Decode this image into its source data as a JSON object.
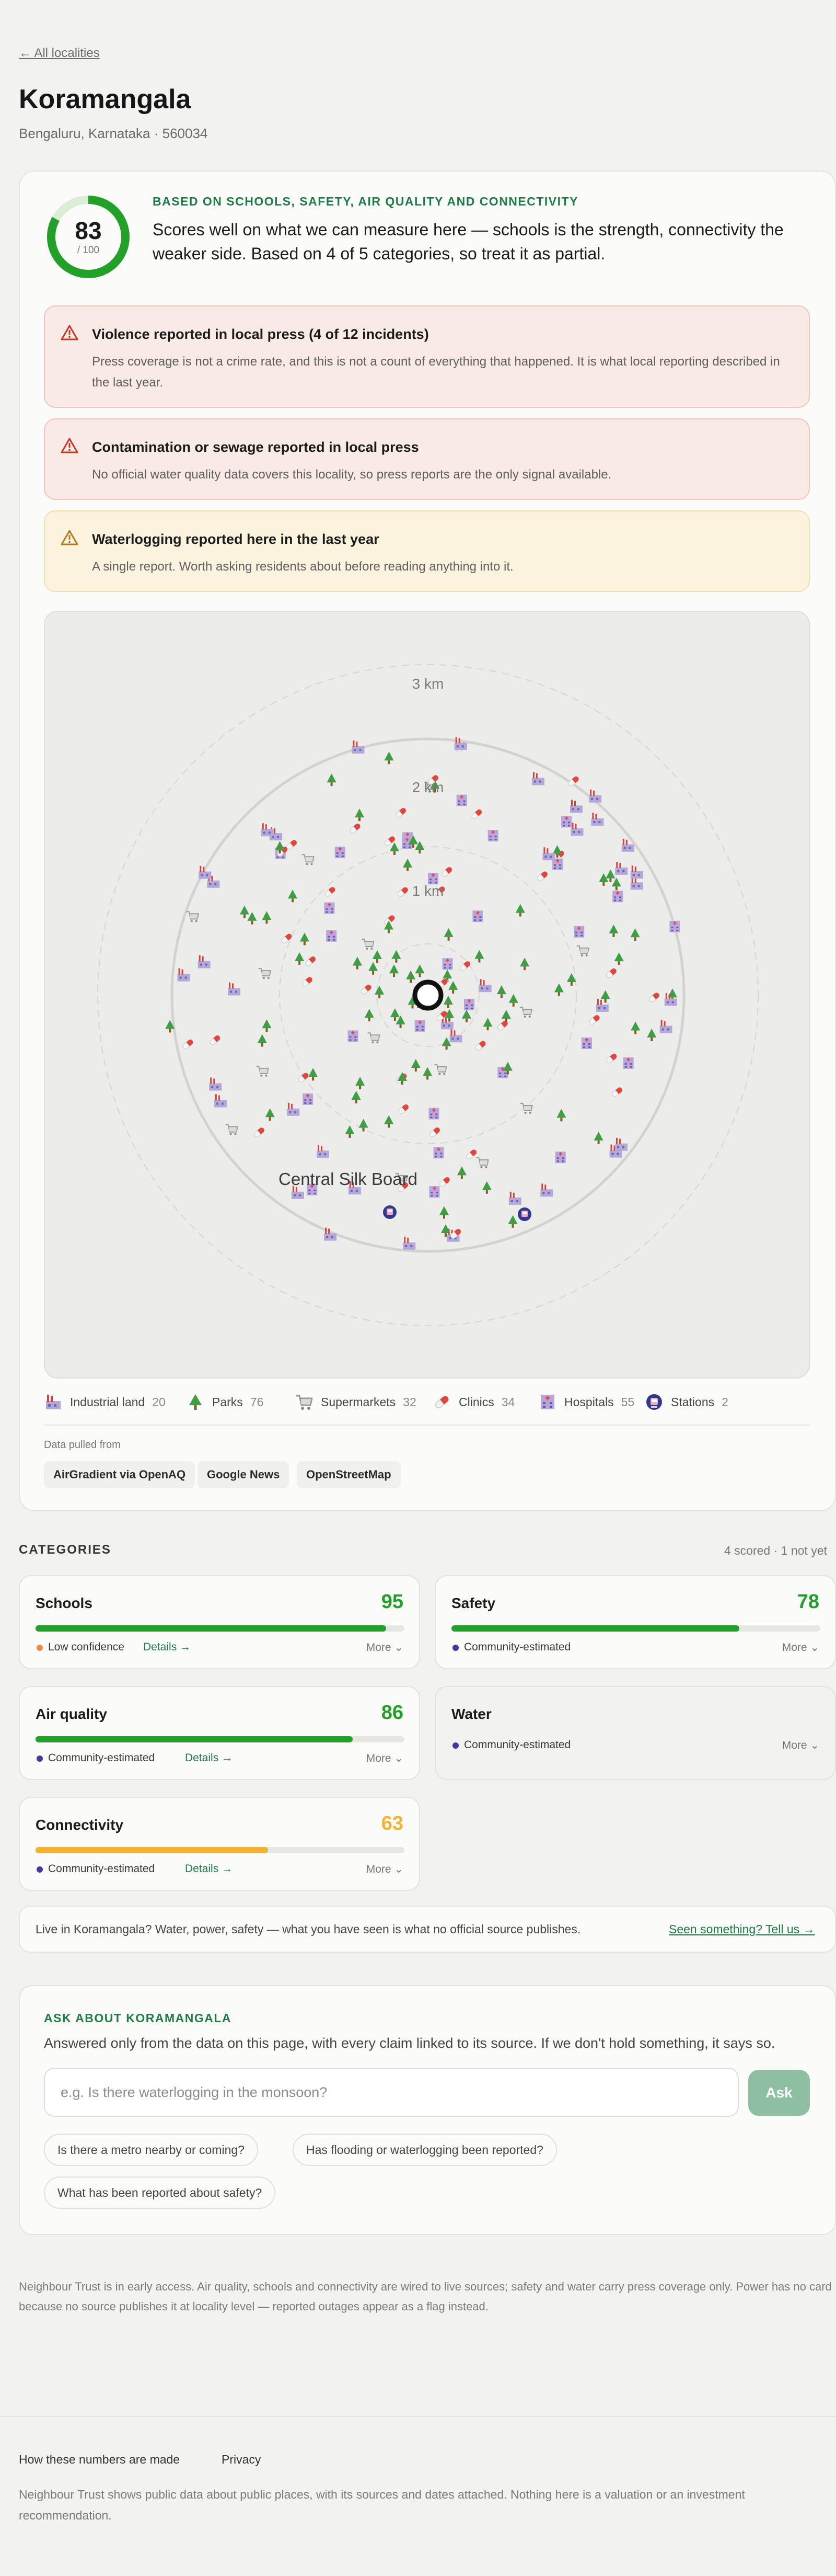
{
  "nav": {
    "back_label": "← All localities"
  },
  "header": {
    "title": "Koramangala",
    "subtitle": "Bengaluru, Karnataka · 560034"
  },
  "overview": {
    "score": "83",
    "score_max": "/ 100",
    "score_fraction": 0.83,
    "basis_label": "BASED ON SCHOOLS, SAFETY, AIR QUALITY AND CONNECTIVITY",
    "summary": "Scores well on what we can measure here — schools is the strength, connectivity the weaker side. Based on 4 of 5 categories, so treat it as partial."
  },
  "alerts": [
    {
      "title": "Violence reported in local press (4 of 12 incidents)",
      "body": "Press coverage is not a crime rate, and this is not a count of everything that happened. It is what local reporting described in the last year.",
      "severity": "high",
      "color": "#c0392b"
    },
    {
      "title": "Contamination or sewage reported in local press",
      "body": "No official water quality data covers this locality, so press reports are the only signal available.",
      "severity": "high",
      "color": "#c0392b"
    },
    {
      "title": "Waterlogging reported here in the last year",
      "body": "A single report. Worth asking residents about before reading anything into it.",
      "severity": "medium",
      "color": "#b7791f"
    }
  ],
  "map": {
    "ring_labels": [
      "1 km",
      "2 km",
      "3 km"
    ],
    "landmark_label": "Central Silk Board"
  },
  "legend": [
    {
      "label": "Industrial land",
      "count": "20",
      "icon": "factory-icon"
    },
    {
      "label": "Parks",
      "count": "76",
      "icon": "tree-icon"
    },
    {
      "label": "Supermarkets",
      "count": "32",
      "icon": "cart-icon"
    },
    {
      "label": "Clinics",
      "count": "34",
      "icon": "pill-icon"
    },
    {
      "label": "Hospitals",
      "count": "55",
      "icon": "hospital-icon"
    },
    {
      "label": "Stations",
      "count": "2",
      "icon": "metro-icon"
    }
  ],
  "sources": {
    "label": "Data pulled from",
    "items": [
      "AirGradient via OpenAQ",
      "Google News",
      "OpenStreetMap"
    ]
  },
  "categories": {
    "heading": "CATEGORIES",
    "count_text": "4 scored · 1 not yet",
    "items": [
      {
        "name": "Schools",
        "score": "95",
        "fill": 0.95,
        "color": "#23a02a",
        "note": "Low confidence",
        "note_dot": "#f08a48",
        "details": "Details →",
        "more": "More ⌄"
      },
      {
        "name": "Safety",
        "score": "78",
        "fill": 0.78,
        "color": "#23a02a",
        "note": "Community-estimated",
        "note_dot": "#3f3a9e",
        "details": "",
        "more": "More ⌄"
      },
      {
        "name": "Air quality",
        "score": "86",
        "fill": 0.86,
        "color": "#23a02a",
        "note": "Community-estimated",
        "note_dot": "#3f3a9e",
        "details": "Details →",
        "more": "More ⌄"
      },
      {
        "name": "Water",
        "score": "",
        "fill": 0,
        "color": "#23a02a",
        "note": "Community-estimated",
        "note_dot": "#3f3a9e",
        "details": "",
        "more": "More ⌄"
      },
      {
        "name": "Connectivity",
        "score": "63",
        "fill": 0.63,
        "color": "#f2b233",
        "note": "Community-estimated",
        "note_dot": "#3f3a9e",
        "details": "Details →",
        "more": "More ⌄"
      }
    ]
  },
  "community": {
    "text": "Live in Koramangala? Water, power, safety — what you have seen is what no official source publishes.",
    "link": "Seen something? Tell us →"
  },
  "ask": {
    "label": "ASK ABOUT KORAMANGALA",
    "subtitle": "Answered only from the data on this page, with every claim linked to its source. If we don't hold something, it says so.",
    "placeholder": "e.g. Is there waterlogging in the monsoon?",
    "value": "",
    "button": "Ask",
    "suggestions": [
      "Is there a metro nearby or coming?",
      "Has flooding or waterlogging been reported?",
      "What has been reported about safety?"
    ]
  },
  "disclaimer": "Neighbour Trust is in early access. Air quality, schools and connectivity are wired to live sources; safety and water carry press coverage only. Power has no card because no source publishes it at locality level — reported outages appear as a flag instead.",
  "footer": {
    "links": [
      "How these numbers are made",
      "Privacy"
    ],
    "text": "Neighbour Trust shows public data about public places, with its sources and dates attached. Nothing here is a valuation or an investment recommendation."
  }
}
